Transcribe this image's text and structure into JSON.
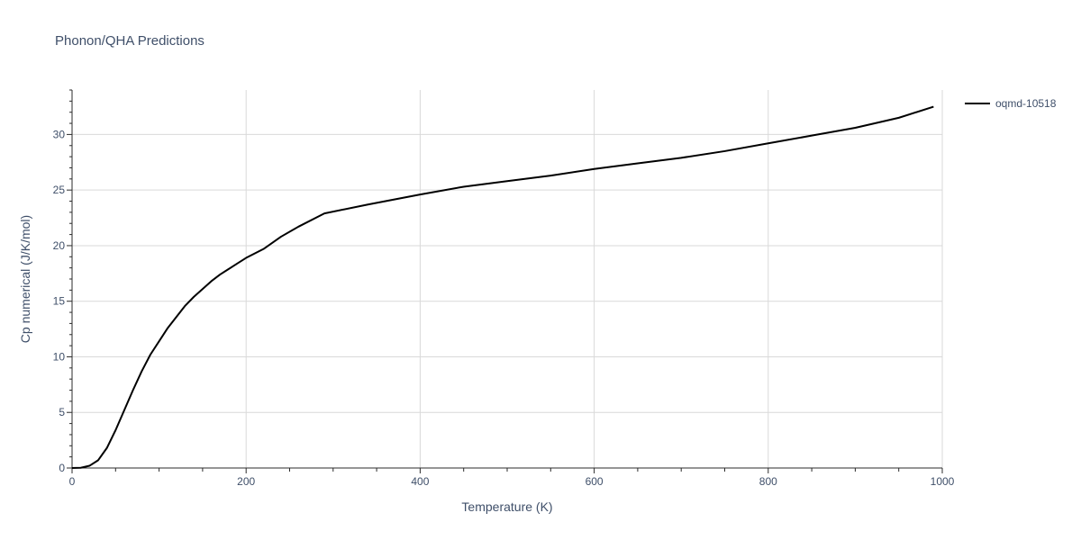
{
  "chart_data": {
    "type": "line",
    "title": "Phonon/QHA Predictions",
    "xlabel": "Temperature (K)",
    "ylabel": "Cp numerical (J/K/mol)",
    "xlim": [
      0,
      1000
    ],
    "ylim": [
      0,
      34
    ],
    "x_ticks": [
      0,
      200,
      400,
      600,
      800,
      1000
    ],
    "y_ticks": [
      0,
      5,
      10,
      15,
      20,
      25,
      30
    ],
    "grid": true,
    "legend_position": "top-right",
    "series": [
      {
        "name": "oqmd-10518",
        "color": "#000000",
        "x": [
          0,
          10,
          20,
          30,
          40,
          50,
          60,
          70,
          80,
          90,
          100,
          110,
          120,
          130,
          140,
          150,
          160,
          170,
          180,
          190,
          200,
          220,
          240,
          260,
          290,
          340,
          400,
          450,
          500,
          550,
          600,
          650,
          700,
          750,
          800,
          850,
          900,
          950,
          990
        ],
        "y": [
          0,
          0.02,
          0.2,
          0.7,
          1.8,
          3.4,
          5.2,
          7.0,
          8.7,
          10.2,
          11.4,
          12.6,
          13.6,
          14.6,
          15.4,
          16.1,
          16.8,
          17.4,
          17.9,
          18.4,
          18.9,
          19.7,
          20.8,
          21.7,
          22.9,
          23.7,
          24.6,
          25.3,
          25.8,
          26.3,
          26.9,
          27.4,
          27.9,
          28.5,
          29.2,
          29.9,
          30.6,
          31.5,
          32.5
        ]
      }
    ]
  }
}
